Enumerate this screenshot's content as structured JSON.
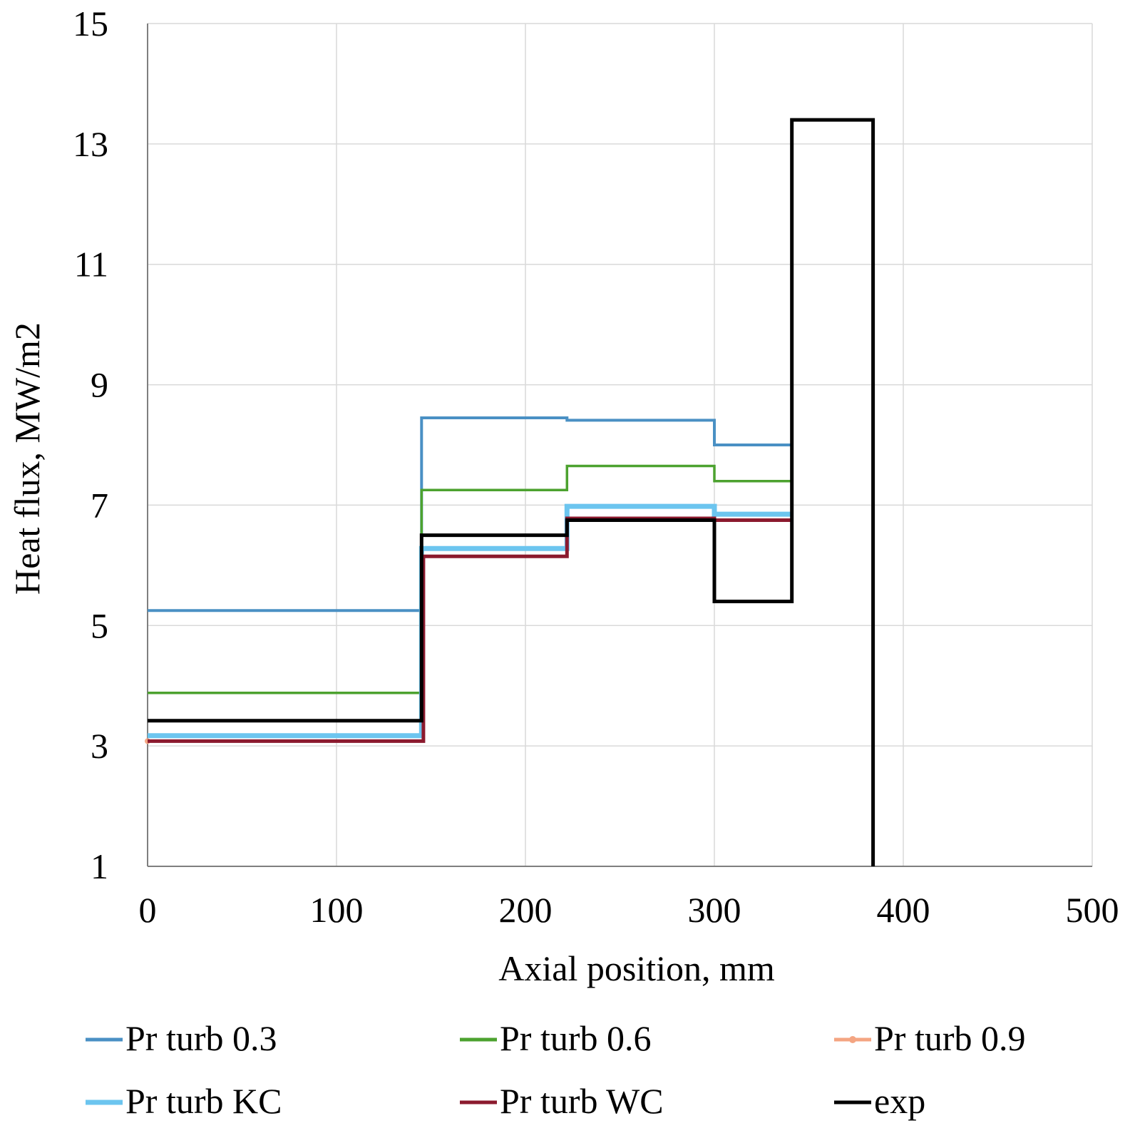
{
  "chart_data": {
    "type": "line",
    "title": "",
    "xlabel": "Axial position, mm",
    "ylabel": "Heat flux, MW/m2",
    "xlim": [
      0,
      500
    ],
    "ylim": [
      1,
      15
    ],
    "xticks": [
      0,
      100,
      200,
      300,
      400,
      500
    ],
    "yticks": [
      1,
      3,
      5,
      7,
      9,
      11,
      13,
      15
    ],
    "grid": true,
    "legend_position": "bottom",
    "series": [
      {
        "name": "Pr turb 0.3",
        "color": "#4a90c4",
        "width": 4,
        "points": [
          [
            0,
            5.25
          ],
          [
            145,
            5.25
          ],
          [
            145,
            8.45
          ],
          [
            222,
            8.45
          ],
          [
            222,
            8.41
          ],
          [
            300,
            8.41
          ],
          [
            300,
            8.0
          ],
          [
            341,
            8.0
          ]
        ]
      },
      {
        "name": "Pr turb 0.6",
        "color": "#4ca22f",
        "width": 3.5,
        "points": [
          [
            0,
            3.88
          ],
          [
            145,
            3.88
          ],
          [
            145,
            7.25
          ],
          [
            222,
            7.25
          ],
          [
            222,
            7.65
          ],
          [
            300,
            7.65
          ],
          [
            300,
            7.4
          ],
          [
            341,
            7.4
          ]
        ]
      },
      {
        "name": "Pr turb 0.9",
        "color": "#f4a582",
        "width": 3,
        "marker": true,
        "points": [
          [
            0,
            3.08
          ],
          [
            146,
            3.08
          ],
          [
            146,
            6.15
          ],
          [
            222,
            6.15
          ],
          [
            222,
            6.78
          ],
          [
            300,
            6.78
          ],
          [
            300,
            6.75
          ],
          [
            341,
            6.75
          ]
        ]
      },
      {
        "name": "Pr turb KC",
        "color": "#6cc5ef",
        "width": 7,
        "points": [
          [
            0,
            3.17
          ],
          [
            145,
            3.17
          ],
          [
            145,
            6.28
          ],
          [
            222,
            6.28
          ],
          [
            222,
            6.98
          ],
          [
            300,
            6.98
          ],
          [
            300,
            6.85
          ],
          [
            341,
            6.85
          ]
        ]
      },
      {
        "name": "Pr turb WC",
        "color": "#8b1a2e",
        "width": 5,
        "points": [
          [
            0,
            3.08
          ],
          [
            146,
            3.08
          ],
          [
            146,
            6.15
          ],
          [
            222,
            6.15
          ],
          [
            222,
            6.78
          ],
          [
            300,
            6.78
          ],
          [
            300,
            6.75
          ],
          [
            341,
            6.75
          ]
        ]
      },
      {
        "name": "exp",
        "color": "#000000",
        "width": 5,
        "points": [
          [
            0,
            3.42
          ],
          [
            145,
            3.42
          ],
          [
            145,
            6.5
          ],
          [
            222,
            6.5
          ],
          [
            222,
            6.75
          ],
          [
            300,
            6.75
          ],
          [
            300,
            5.4
          ],
          [
            341,
            5.4
          ],
          [
            341,
            13.4
          ],
          [
            384,
            13.4
          ],
          [
            384,
            1
          ]
        ]
      }
    ]
  }
}
